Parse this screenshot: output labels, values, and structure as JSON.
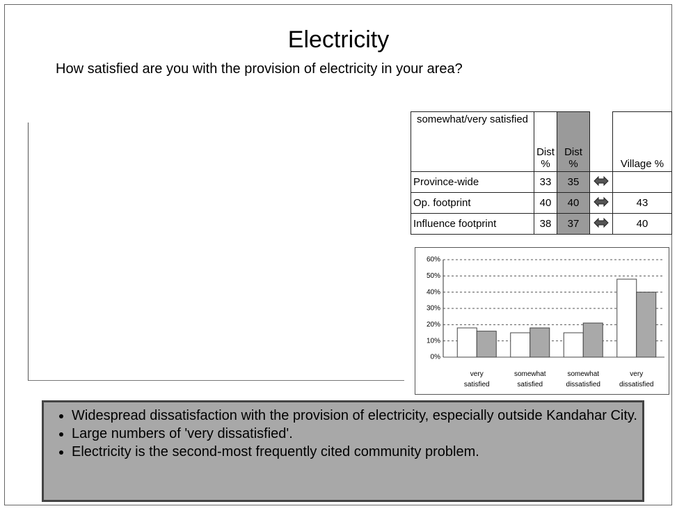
{
  "title": "Electricity",
  "question": "How satisfied are you with the provision of electricity in your area?",
  "table": {
    "header": {
      "label": "somewhat/very satisfied",
      "dist": "Dist %",
      "dist2": "Dist %",
      "village": "Village %"
    },
    "rows": [
      {
        "label": "Province-wide",
        "dist": 33,
        "dist2": 35
      },
      {
        "label": "Op. footprint",
        "dist": 40,
        "dist2": 40,
        "village": 43
      },
      {
        "label": "Influence footprint",
        "dist": 38,
        "dist2": 37,
        "village": 40
      }
    ]
  },
  "chart_data": {
    "type": "bar",
    "categories": [
      "very satisfied",
      "somewhat satisfied",
      "somewhat dissatisfied",
      "very dissatisfied"
    ],
    "series": [
      {
        "color": "#ffffff",
        "values": [
          18,
          15,
          15,
          48
        ]
      },
      {
        "color": "#a9a9a9",
        "values": [
          16,
          18,
          21,
          40
        ]
      }
    ],
    "ylim": [
      0,
      60
    ],
    "yticks": [
      {
        "value": 0,
        "label": "0%"
      },
      {
        "value": 10,
        "label": "10%"
      },
      {
        "value": 20,
        "label": "20%"
      },
      {
        "value": 30,
        "label": "30%"
      },
      {
        "value": 40,
        "label": "40%"
      },
      {
        "value": 50,
        "label": "50%"
      },
      {
        "value": 60,
        "label": "60%"
      }
    ],
    "grid": true
  },
  "bullets": [
    "Widespread dissatisfaction with the provision of electricity, especially outside Kandahar City.",
    "Large numbers of 'very dissatisfied'.",
    "Electricity is the second-most frequently cited community problem."
  ]
}
